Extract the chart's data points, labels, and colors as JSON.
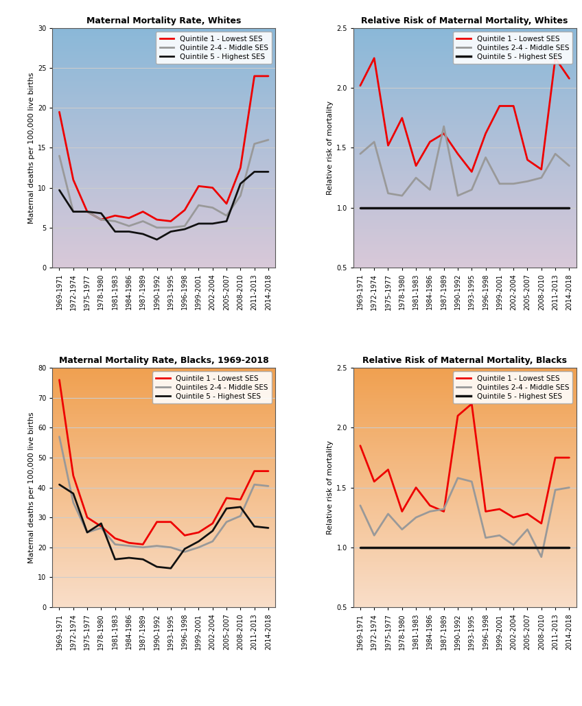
{
  "x_labels": [
    "1969-1971",
    "1972-1974",
    "1975-1977",
    "1978-1980",
    "1981-1983",
    "1984-1986",
    "1987-1989",
    "1990-1992",
    "1993-1995",
    "1996-1998",
    "1999-2001",
    "2002-2004",
    "2005-2007",
    "2008-2010",
    "2011-2013",
    "2014-2018"
  ],
  "white_rate_q1": [
    19.5,
    11.0,
    7.0,
    6.0,
    6.5,
    6.2,
    7.0,
    6.0,
    5.8,
    7.2,
    10.2,
    10.0,
    8.0,
    12.5,
    24.0,
    24.0
  ],
  "white_rate_q24": [
    14.0,
    7.0,
    7.0,
    6.0,
    5.8,
    5.2,
    5.8,
    5.0,
    5.0,
    5.2,
    7.8,
    7.5,
    6.5,
    9.0,
    15.5,
    16.0
  ],
  "white_rate_q5": [
    9.7,
    7.0,
    7.0,
    6.8,
    4.5,
    4.5,
    4.2,
    3.5,
    4.5,
    4.8,
    5.5,
    5.5,
    5.8,
    10.5,
    12.0,
    12.0
  ],
  "white_rr_q1": [
    2.02,
    2.25,
    1.52,
    1.75,
    1.35,
    1.55,
    1.62,
    1.45,
    1.3,
    1.62,
    1.85,
    1.85,
    1.4,
    1.32,
    2.25,
    2.08
  ],
  "white_rr_q24": [
    1.45,
    1.55,
    1.12,
    1.1,
    1.25,
    1.15,
    1.68,
    1.1,
    1.15,
    1.42,
    1.2,
    1.2,
    1.22,
    1.25,
    1.45,
    1.35
  ],
  "white_rr_q5": [
    1.0,
    1.0,
    1.0,
    1.0,
    1.0,
    1.0,
    1.0,
    1.0,
    1.0,
    1.0,
    1.0,
    1.0,
    1.0,
    1.0,
    1.0,
    1.0
  ],
  "black_rate_q1": [
    76.0,
    44.0,
    30.0,
    27.0,
    23.0,
    21.5,
    21.0,
    28.5,
    28.5,
    24.0,
    25.0,
    28.0,
    36.5,
    36.0,
    45.5,
    45.5
  ],
  "black_rate_q24": [
    57.0,
    35.0,
    25.0,
    26.5,
    21.0,
    20.5,
    20.0,
    20.5,
    20.0,
    18.5,
    20.0,
    22.0,
    28.5,
    30.5,
    41.0,
    40.5
  ],
  "black_rate_q5": [
    41.0,
    38.0,
    25.0,
    28.0,
    16.0,
    16.5,
    16.0,
    13.5,
    13.0,
    19.5,
    22.0,
    25.5,
    33.0,
    33.5,
    27.0,
    26.5
  ],
  "black_rr_q1": [
    1.85,
    1.55,
    1.65,
    1.3,
    1.5,
    1.35,
    1.3,
    2.1,
    2.2,
    1.3,
    1.32,
    1.25,
    1.28,
    1.2,
    1.75,
    1.75
  ],
  "black_rr_q24": [
    1.35,
    1.1,
    1.28,
    1.15,
    1.25,
    1.3,
    1.32,
    1.58,
    1.55,
    1.08,
    1.1,
    1.02,
    1.15,
    0.92,
    1.48,
    1.5
  ],
  "black_rr_q5": [
    1.0,
    1.0,
    1.0,
    1.0,
    1.0,
    1.0,
    1.0,
    1.0,
    1.0,
    1.0,
    1.0,
    1.0,
    1.0,
    1.0,
    1.0,
    1.0
  ],
  "color_q1": "#ee0000",
  "color_q24": "#999999",
  "color_q5": "#111111",
  "title_white_rate": "Maternal Mortality Rate, Whites",
  "title_white_rr": "Relative Risk of Maternal Mortality, Whites",
  "title_black_rate": "Maternal Mortality Rate, Blacks, 1969-2018",
  "title_black_rr": "Relative Risk of Maternal Mortality, Blacks",
  "ylabel_rate": "Maternal deaths per 100,000 live births",
  "ylabel_rr": "Relative risk of mortality",
  "legend_q1_white_rate": "Quintile 1 - Lowest SES",
  "legend_q24_white_rate": "Quintile 2-4 - Middle SES",
  "legend_q5_white_rate": "Quintile 5 - Highest SES",
  "legend_q1_white_rr": "Quintile 1 - Lowest SES",
  "legend_q24_white_rr": "Quintiles 2-4 - Middle SES",
  "legend_q5_white_rr": "Quintile 5 - Highest SES",
  "legend_q1_black_rate": "Quintile 1 - Lowest SES",
  "legend_q24_black_rate": "Quintiles 2-4 - Middle SES",
  "legend_q5_black_rate": "Quintile 5 - Highest SES",
  "legend_q1_black_rr": "Quintile 1 - Lowest SES",
  "legend_q24_black_rr": "Quintiles 2-4 - Middle SES",
  "legend_q5_black_rr": "Quintile 5 - Highest SES",
  "white_rate_ylim": [
    0,
    30
  ],
  "white_rate_yticks": [
    0,
    5,
    10,
    15,
    20,
    25,
    30
  ],
  "rr_ylim": [
    0.5,
    2.5
  ],
  "rr_yticks": [
    0.5,
    1.0,
    1.5,
    2.0,
    2.5
  ],
  "black_rate_ylim": [
    0,
    80
  ],
  "black_rate_yticks": [
    0,
    10,
    20,
    30,
    40,
    50,
    60,
    70,
    80
  ],
  "bg_blue_top": "#8ab8d8",
  "bg_blue_mid": "#b8d0e8",
  "bg_blue_bot": "#d8c8d8",
  "bg_orange_top": "#f0a050",
  "bg_orange_bot": "#f8ddc8"
}
